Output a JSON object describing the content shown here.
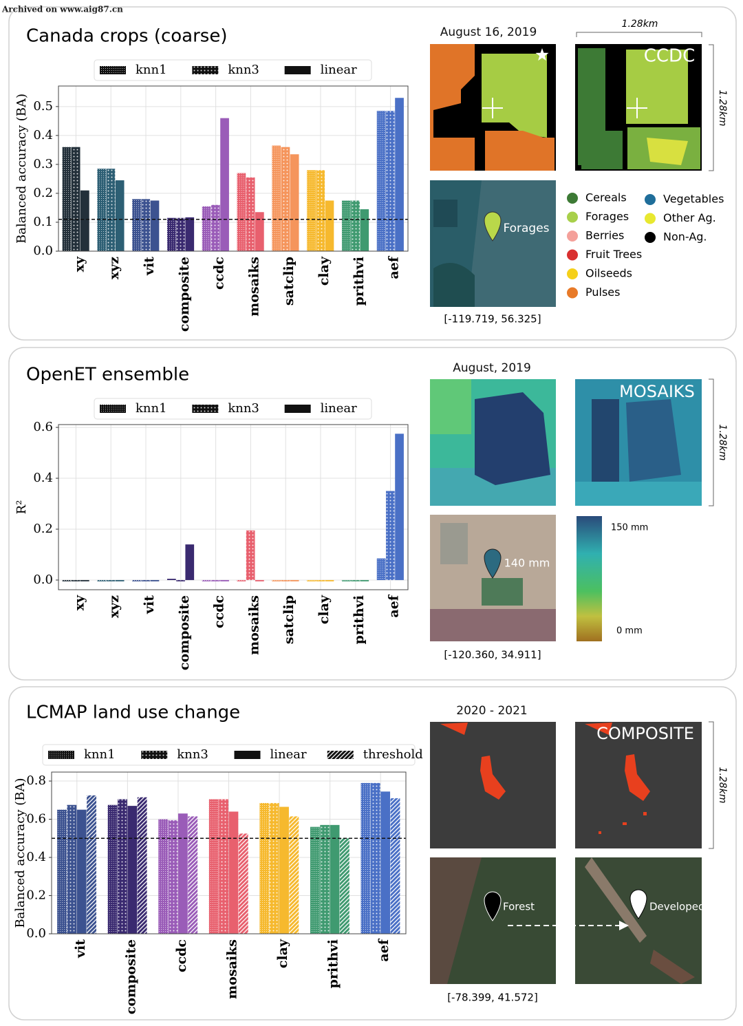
{
  "watermark": "Archived on www.aig87.cn",
  "chart_data": [
    {
      "type": "bar",
      "title": "Canada crops (coarse)",
      "ylabel": "Balanced accuracy (BA)",
      "categories": [
        "xy",
        "xyz",
        "vit",
        "composite",
        "ccdc",
        "mosaiks",
        "satclip",
        "clay",
        "prithvi",
        "aef"
      ],
      "category_colors": [
        "#23303a",
        "#2d5f74",
        "#3c5290",
        "#3a2a70",
        "#9a5cb8",
        "#e8606e",
        "#f5955c",
        "#f6b92e",
        "#3f9a70",
        "#4a70c6"
      ],
      "series": [
        {
          "name": "knn1",
          "hatch": "dense",
          "values": [
            0.36,
            0.285,
            0.18,
            0.115,
            0.155,
            0.27,
            0.365,
            0.28,
            0.175,
            0.485
          ]
        },
        {
          "name": "knn3",
          "hatch": "dots",
          "values": [
            0.36,
            0.285,
            0.18,
            0.115,
            0.16,
            0.255,
            0.36,
            0.28,
            0.175,
            0.485
          ]
        },
        {
          "name": "linear",
          "hatch": "none",
          "values": [
            0.21,
            0.245,
            0.175,
            0.117,
            0.46,
            0.135,
            0.335,
            0.175,
            0.145,
            0.53
          ]
        }
      ],
      "ylim": [
        0,
        0.571
      ],
      "yticks": [
        {
          "value": 0,
          "label": "0.0"
        },
        0.1,
        0.2,
        0.3,
        0.4,
        0.5
      ],
      "reference_line": 0.11,
      "grid": true
    },
    {
      "type": "bar",
      "title": "OpenET ensemble",
      "ylabel": "R²",
      "categories": [
        "xy",
        "xyz",
        "vit",
        "composite",
        "ccdc",
        "mosaiks",
        "satclip",
        "clay",
        "prithvi",
        "aef"
      ],
      "category_colors": [
        "#23303a",
        "#2d5f74",
        "#3c5290",
        "#3a2a70",
        "#9a5cb8",
        "#e8606e",
        "#f5955c",
        "#f6b92e",
        "#3f9a70",
        "#4a70c6"
      ],
      "series": [
        {
          "name": "knn1",
          "hatch": "dense",
          "values": [
            -0.005,
            -0.005,
            -0.005,
            0.005,
            -0.005,
            -0.005,
            -0.005,
            -0.005,
            -0.005,
            0.085
          ]
        },
        {
          "name": "knn3",
          "hatch": "dots",
          "values": [
            -0.005,
            -0.005,
            -0.005,
            -0.005,
            -0.005,
            0.195,
            -0.005,
            -0.005,
            -0.005,
            0.35
          ]
        },
        {
          "name": "linear",
          "hatch": "none",
          "values": [
            -0.005,
            -0.005,
            -0.005,
            0.14,
            -0.005,
            -0.005,
            -0.005,
            -0.005,
            -0.005,
            0.575
          ]
        }
      ],
      "ylim": [
        -0.038,
        0.611
      ],
      "yticks": [
        {
          "value": 0,
          "label": "0.0"
        },
        0.2,
        0.4,
        0.6
      ],
      "grid": true
    },
    {
      "type": "bar",
      "title": "LCMAP land use change",
      "ylabel": "Balanced accuracy (BA)",
      "categories": [
        "vit",
        "composite",
        "ccdc",
        "mosaiks",
        "clay",
        "prithvi",
        "aef"
      ],
      "category_colors": [
        "#3c5290",
        "#3a2a70",
        "#9a5cb8",
        "#e8606e",
        "#f6b92e",
        "#3f9a70",
        "#4a70c6"
      ],
      "series": [
        {
          "name": "knn1",
          "hatch": "dense",
          "values": [
            0.65,
            0.675,
            0.6,
            0.705,
            0.685,
            0.56,
            0.79
          ]
        },
        {
          "name": "knn3",
          "hatch": "dots",
          "values": [
            0.675,
            0.705,
            0.595,
            0.705,
            0.685,
            0.57,
            0.79
          ]
        },
        {
          "name": "linear",
          "hatch": "none",
          "values": [
            0.65,
            0.67,
            0.63,
            0.64,
            0.665,
            0.57,
            0.745
          ]
        },
        {
          "name": "threshold",
          "hatch": "diagonal",
          "values": [
            0.725,
            0.715,
            0.615,
            0.525,
            0.615,
            0.5,
            0.71
          ]
        }
      ],
      "ylim": [
        0,
        0.847
      ],
      "yticks": [
        {
          "value": 0,
          "label": "0.0"
        },
        0.2,
        0.4,
        0.6,
        0.8
      ],
      "reference_line": 0.5,
      "grid": true
    }
  ],
  "panels": [
    {
      "date": "August 16, 2019",
      "scale_top": "1.28km",
      "scale_side": "1.28km",
      "method": "CCDC",
      "pin_label": "Forages",
      "coords": "[-119.719, 56.325]",
      "legend": [
        {
          "label": "Cereals",
          "color": "#3d7a35"
        },
        {
          "label": "Forages",
          "color": "#a8d04a"
        },
        {
          "label": "Berries",
          "color": "#f4a09a"
        },
        {
          "label": "Fruit Trees",
          "color": "#d93030"
        },
        {
          "label": "Oilseeds",
          "color": "#f5d01a"
        },
        {
          "label": "Pulses",
          "color": "#e87a28"
        },
        {
          "label": "Vegetables",
          "color": "#1f6e9a"
        },
        {
          "label": "Other Ag.",
          "color": "#e8e830"
        },
        {
          "label": "Non-Ag.",
          "color": "#000000"
        }
      ]
    },
    {
      "date": "August, 2019",
      "scale_side": "1.28km",
      "method": "MOSAIKS",
      "pin_label": "140 mm",
      "coords": "[-120.360, 34.911]",
      "colorbar_max": "150 mm",
      "colorbar_min": "0 mm"
    },
    {
      "date": "2020 - 2021",
      "scale_side": "1.28km",
      "method": "COMPOSITE",
      "pin_label_before": "Forest",
      "pin_label_after": "Developed",
      "coords": "[-78.399, 41.572]"
    }
  ]
}
